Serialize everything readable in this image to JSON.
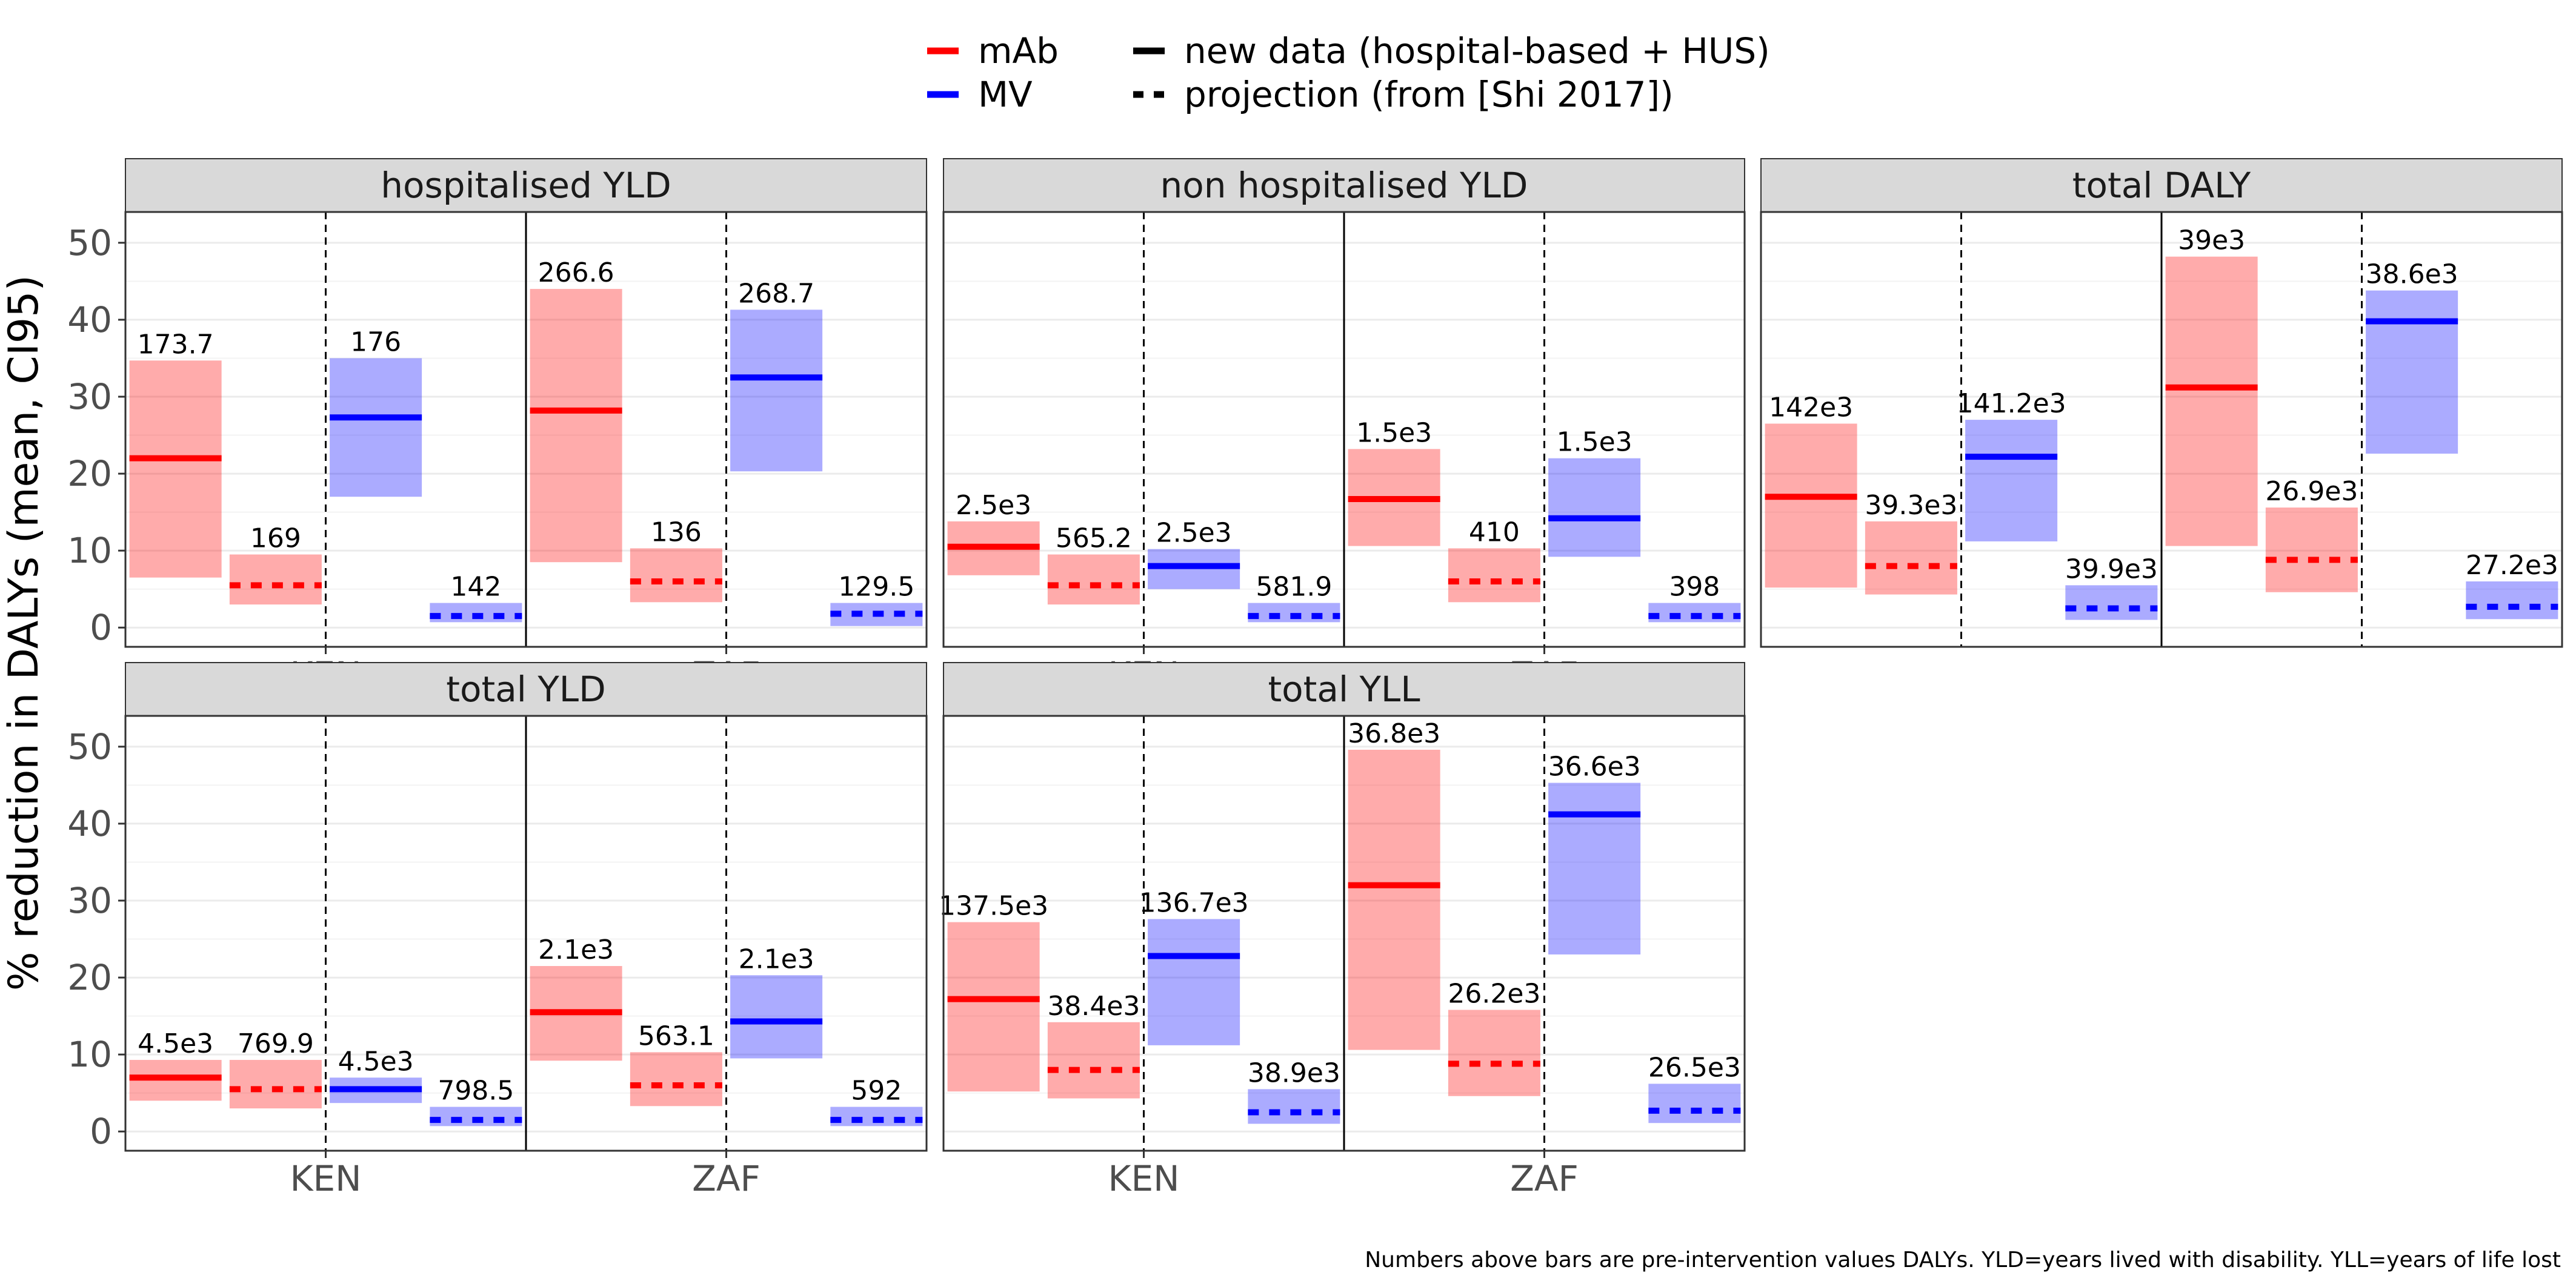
{
  "colors": {
    "mAb": "#ff0000",
    "MV": "#0000ff",
    "strip_bg": "#d9d9d9",
    "panel_border": "#333333",
    "grid": "#ebebeb",
    "tick_text": "#4d4d4d"
  },
  "legend": [
    {
      "label": "mAb",
      "kind": "color",
      "color": "#ff0000"
    },
    {
      "label": "MV",
      "kind": "color",
      "color": "#0000ff"
    },
    {
      "label": "new data (hospital-based + HUS)",
      "kind": "line",
      "dashed": false
    },
    {
      "label": "projection (from [Shi 2017])",
      "kind": "line",
      "dashed": true
    }
  ],
  "ylabel": "% reduction in DALYs (mean, CI95)",
  "caption": "Numbers above bars are pre-intervention values DALYs. YLD=years lived with disability. YLL=years of life lost",
  "chart_data": {
    "type": "bar",
    "x_categories": [
      "KEN",
      "ZAF"
    ],
    "ylim": [
      -2.5,
      54
    ],
    "y_ticks": [
      0,
      10,
      20,
      30,
      40,
      50
    ],
    "grid": true,
    "legend_placement": "top",
    "panels": [
      {
        "title": "hospitalised YLD",
        "groups": [
          {
            "country": "KEN",
            "bars": [
              {
                "intervention": "mAb",
                "type": "new",
                "mean": 22,
                "low": 6.5,
                "high": 34.7,
                "label": "173.7"
              },
              {
                "intervention": "mAb",
                "type": "projection",
                "mean": 5.5,
                "low": 3,
                "high": 9.5,
                "label": "169"
              },
              {
                "intervention": "MV",
                "type": "new",
                "mean": 27.3,
                "low": 17,
                "high": 35,
                "label": "176"
              },
              {
                "intervention": "MV",
                "type": "projection",
                "mean": 1.5,
                "low": 0.7,
                "high": 3.2,
                "label": "142"
              }
            ]
          },
          {
            "country": "ZAF",
            "bars": [
              {
                "intervention": "mAb",
                "type": "new",
                "mean": 28.2,
                "low": 8.5,
                "high": 44,
                "label": "266.6"
              },
              {
                "intervention": "mAb",
                "type": "projection",
                "mean": 6,
                "low": 3.3,
                "high": 10.3,
                "label": "136"
              },
              {
                "intervention": "MV",
                "type": "new",
                "mean": 32.5,
                "low": 20.3,
                "high": 41.3,
                "label": "268.7"
              },
              {
                "intervention": "MV",
                "type": "projection",
                "mean": 1.8,
                "low": 0.2,
                "high": 3.2,
                "label": "129.5"
              }
            ]
          }
        ]
      },
      {
        "title": "non hospitalised YLD",
        "groups": [
          {
            "country": "KEN",
            "bars": [
              {
                "intervention": "mAb",
                "type": "new",
                "mean": 10.5,
                "low": 6.8,
                "high": 13.8,
                "label": "2.5e3"
              },
              {
                "intervention": "mAb",
                "type": "projection",
                "mean": 5.5,
                "low": 3,
                "high": 9.5,
                "label": "565.2"
              },
              {
                "intervention": "MV",
                "type": "new",
                "mean": 8,
                "low": 5,
                "high": 10.2,
                "label": "2.5e3"
              },
              {
                "intervention": "MV",
                "type": "projection",
                "mean": 1.5,
                "low": 0.7,
                "high": 3.2,
                "label": "581.9"
              }
            ]
          },
          {
            "country": "ZAF",
            "bars": [
              {
                "intervention": "mAb",
                "type": "new",
                "mean": 16.7,
                "low": 10.6,
                "high": 23.2,
                "label": "1.5e3"
              },
              {
                "intervention": "mAb",
                "type": "projection",
                "mean": 6,
                "low": 3.3,
                "high": 10.3,
                "label": "410"
              },
              {
                "intervention": "MV",
                "type": "new",
                "mean": 14.2,
                "low": 9.2,
                "high": 22,
                "label": "1.5e3"
              },
              {
                "intervention": "MV",
                "type": "projection",
                "mean": 1.5,
                "low": 0.7,
                "high": 3.2,
                "label": "398"
              }
            ]
          }
        ]
      },
      {
        "title": "total DALY",
        "groups": [
          {
            "country": "KEN",
            "bars": [
              {
                "intervention": "mAb",
                "type": "new",
                "mean": 17,
                "low": 5.2,
                "high": 26.5,
                "label": "142e3"
              },
              {
                "intervention": "mAb",
                "type": "projection",
                "mean": 8,
                "low": 4.3,
                "high": 13.8,
                "label": "39.3e3"
              },
              {
                "intervention": "MV",
                "type": "new",
                "mean": 22.2,
                "low": 11.2,
                "high": 27,
                "label": "141.2e3"
              },
              {
                "intervention": "MV",
                "type": "projection",
                "mean": 2.5,
                "low": 1,
                "high": 5.5,
                "label": "39.9e3"
              }
            ]
          },
          {
            "country": "ZAF",
            "bars": [
              {
                "intervention": "mAb",
                "type": "new",
                "mean": 31.2,
                "low": 10.6,
                "high": 48.2,
                "label": "39e3"
              },
              {
                "intervention": "mAb",
                "type": "projection",
                "mean": 8.8,
                "low": 4.6,
                "high": 15.6,
                "label": "26.9e3"
              },
              {
                "intervention": "MV",
                "type": "new",
                "mean": 39.8,
                "low": 22.6,
                "high": 43.8,
                "label": "38.6e3"
              },
              {
                "intervention": "MV",
                "type": "projection",
                "mean": 2.7,
                "low": 1.1,
                "high": 6,
                "label": "27.2e3"
              }
            ]
          }
        ]
      },
      {
        "title": "total YLD",
        "groups": [
          {
            "country": "KEN",
            "bars": [
              {
                "intervention": "mAb",
                "type": "new",
                "mean": 7,
                "low": 4,
                "high": 9.3,
                "label": "4.5e3"
              },
              {
                "intervention": "mAb",
                "type": "projection",
                "mean": 5.5,
                "low": 3,
                "high": 9.3,
                "label": "769.9"
              },
              {
                "intervention": "MV",
                "type": "new",
                "mean": 5.5,
                "low": 3.7,
                "high": 7,
                "label": "4.5e3"
              },
              {
                "intervention": "MV",
                "type": "projection",
                "mean": 1.5,
                "low": 0.7,
                "high": 3.2,
                "label": "798.5"
              }
            ]
          },
          {
            "country": "ZAF",
            "bars": [
              {
                "intervention": "mAb",
                "type": "new",
                "mean": 15.5,
                "low": 9.2,
                "high": 21.5,
                "label": "2.1e3"
              },
              {
                "intervention": "mAb",
                "type": "projection",
                "mean": 6,
                "low": 3.3,
                "high": 10.3,
                "label": "563.1"
              },
              {
                "intervention": "MV",
                "type": "new",
                "mean": 14.3,
                "low": 9.5,
                "high": 20.3,
                "label": "2.1e3"
              },
              {
                "intervention": "MV",
                "type": "projection",
                "mean": 1.5,
                "low": 0.7,
                "high": 3.2,
                "label": "592"
              }
            ]
          }
        ]
      },
      {
        "title": "total YLL",
        "groups": [
          {
            "country": "KEN",
            "bars": [
              {
                "intervention": "mAb",
                "type": "new",
                "mean": 17.2,
                "low": 5.2,
                "high": 27.2,
                "label": "137.5e3"
              },
              {
                "intervention": "mAb",
                "type": "projection",
                "mean": 8,
                "low": 4.3,
                "high": 14.2,
                "label": "38.4e3"
              },
              {
                "intervention": "MV",
                "type": "new",
                "mean": 22.8,
                "low": 11.2,
                "high": 27.6,
                "label": "136.7e3"
              },
              {
                "intervention": "MV",
                "type": "projection",
                "mean": 2.5,
                "low": 1,
                "high": 5.5,
                "label": "38.9e3"
              }
            ]
          },
          {
            "country": "ZAF",
            "bars": [
              {
                "intervention": "mAb",
                "type": "new",
                "mean": 32,
                "low": 10.6,
                "high": 49.6,
                "label": "36.8e3"
              },
              {
                "intervention": "mAb",
                "type": "projection",
                "mean": 8.8,
                "low": 4.6,
                "high": 15.8,
                "label": "26.2e3"
              },
              {
                "intervention": "MV",
                "type": "new",
                "mean": 41.2,
                "low": 23,
                "high": 45.3,
                "label": "36.6e3"
              },
              {
                "intervention": "MV",
                "type": "projection",
                "mean": 2.7,
                "low": 1.1,
                "high": 6.2,
                "label": "26.5e3"
              }
            ]
          }
        ]
      }
    ]
  }
}
